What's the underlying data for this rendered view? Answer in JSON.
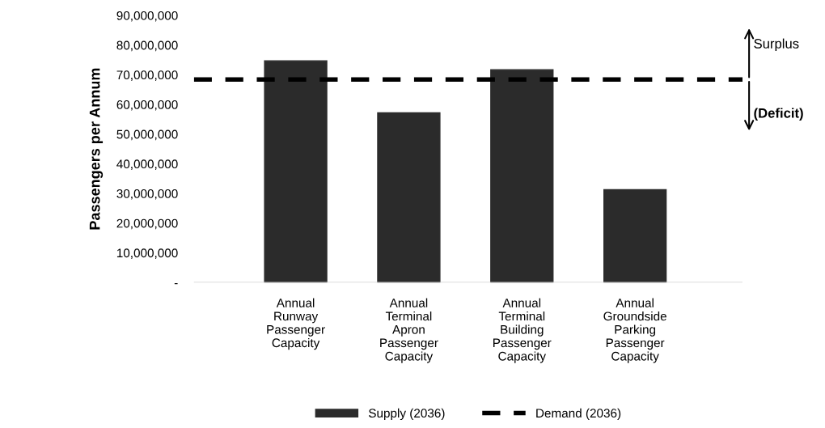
{
  "chart_data": {
    "type": "bar",
    "ylabel": "Passengers per Annum",
    "categories": [
      "Annual\nRunway\nPassenger\nCapacity",
      "Annual\nTerminal\nApron\nPassenger\nCapacity",
      "Annual\nTerminal\nBuilding\nPassenger\nCapacity",
      "Annual\nGroundside\nParking\nPassenger\nCapacity"
    ],
    "series": [
      {
        "name": "Supply (2036)",
        "color": "#2b2b2b",
        "values": [
          74700000,
          57200000,
          71700000,
          31300000
        ]
      }
    ],
    "ref_lines": [
      {
        "axis": "y",
        "value": 68400000,
        "label": "Demand (2036)",
        "color": "#000000",
        "line_style": "dashed"
      }
    ],
    "annotations": [
      "Surplus",
      "(Deficit)"
    ],
    "ylim": [
      0,
      90000000
    ],
    "yticks": [
      {
        "value": 0,
        "label": "-"
      },
      {
        "value": 10000000,
        "label": "10,000,000"
      },
      {
        "value": 20000000,
        "label": "20,000,000"
      },
      {
        "value": 30000000,
        "label": "30,000,000"
      },
      {
        "value": 40000000,
        "label": "40,000,000"
      },
      {
        "value": 50000000,
        "label": "50,000,000"
      },
      {
        "value": 60000000,
        "label": "60,000,000"
      },
      {
        "value": 70000000,
        "label": "70,000,000"
      },
      {
        "value": 80000000,
        "label": "80,000,000"
      },
      {
        "value": 90000000,
        "label": "90,000,000"
      }
    ],
    "grid": false,
    "legend": "bottom"
  }
}
